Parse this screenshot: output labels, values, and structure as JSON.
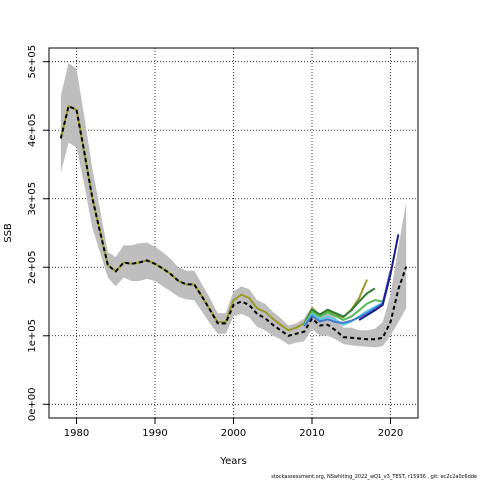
{
  "chart_data": {
    "type": "line",
    "xlabel": "Years",
    "ylabel": "SSB",
    "xlim": [
      1976.5,
      2023.5
    ],
    "ylim": [
      -20000,
      520000
    ],
    "grid": true,
    "x_ticks": [
      1980,
      1990,
      2000,
      2010,
      2020
    ],
    "x_tick_labels": [
      "1980",
      "1990",
      "2000",
      "2010",
      "2020"
    ],
    "y_ticks": [
      0,
      100000,
      200000,
      300000,
      400000,
      500000
    ],
    "y_tick_labels": [
      "0e+00",
      "1e+05",
      "2e+05",
      "3e+05",
      "4e+05",
      "5e+05"
    ],
    "colors": {
      "band": "#bebebe",
      "peel_olive": "#9a9a2a",
      "peel_darkgreen": "#2e7d32",
      "peel_green": "#56b856",
      "peel_lightblue": "#5ec8e8",
      "peel_blue": "#4478d0",
      "peel_navy": "#1c1c8c",
      "peel_last": "#000000"
    },
    "band": {
      "x": [
        1978,
        1979,
        1980,
        1981,
        1982,
        1983,
        1984,
        1985,
        1986,
        1987,
        1988,
        1989,
        1990,
        1991,
        1992,
        1993,
        1994,
        1995,
        1996,
        1997,
        1998,
        1999,
        2000,
        2001,
        2002,
        2003,
        2004,
        2005,
        2006,
        2007,
        2008,
        2009,
        2010,
        2011,
        2012,
        2013,
        2014,
        2015,
        2016,
        2017,
        2018,
        2019,
        2020,
        2021,
        2022
      ],
      "upper": [
        450000,
        498000,
        490000,
        420000,
        345000,
        285000,
        222000,
        215000,
        232000,
        232000,
        235000,
        236000,
        230000,
        222000,
        212000,
        200000,
        195000,
        195000,
        175000,
        155000,
        133000,
        133000,
        165000,
        172000,
        168000,
        152000,
        147000,
        135000,
        126000,
        115000,
        118000,
        125000,
        143000,
        132000,
        135000,
        127000,
        112000,
        112000,
        108000,
        108000,
        110000,
        120000,
        160000,
        230000,
        295000
      ],
      "lower": [
        338000,
        382000,
        375000,
        320000,
        258000,
        222000,
        185000,
        172000,
        185000,
        180000,
        180000,
        183000,
        180000,
        172000,
        165000,
        157000,
        153000,
        152000,
        135000,
        118000,
        103000,
        103000,
        128000,
        132000,
        127000,
        113000,
        108000,
        100000,
        95000,
        87000,
        90000,
        92000,
        110000,
        100000,
        100000,
        95000,
        88000,
        86000,
        85000,
        84000,
        83000,
        85000,
        100000,
        120000,
        140000
      ]
    },
    "series": [
      {
        "color_key": "peel_olive",
        "dashed": false,
        "x": [
          1978,
          1979,
          1980,
          1981,
          1982,
          1983,
          1984,
          1985,
          1986,
          1987,
          1988,
          1989,
          1990,
          1991,
          1992,
          1993,
          1994,
          1995,
          1996,
          1997,
          1998,
          1999,
          2000,
          2001,
          2002,
          2003,
          2004,
          2005,
          2006,
          2007,
          2008,
          2009,
          2010,
          2011,
          2012,
          2013,
          2014,
          2015,
          2016,
          2017
        ],
        "values": [
          388000,
          435000,
          430000,
          368000,
          302000,
          252000,
          203000,
          194000,
          207000,
          205000,
          207000,
          210000,
          205000,
          198000,
          190000,
          180000,
          175000,
          175000,
          157000,
          138000,
          120000,
          120000,
          152000,
          160000,
          155000,
          140000,
          135000,
          125000,
          116000,
          108000,
          112000,
          118000,
          140000,
          130000,
          136000,
          131000,
          127000,
          138000,
          155000,
          182000
        ]
      },
      {
        "color_key": "peel_darkgreen",
        "dashed": false,
        "x": [
          2009,
          2010,
          2011,
          2012,
          2013,
          2014,
          2015,
          2016,
          2017,
          2018
        ],
        "values": [
          117000,
          138000,
          131000,
          138000,
          133000,
          128000,
          137000,
          150000,
          162000,
          169000
        ]
      },
      {
        "color_key": "peel_green",
        "dashed": false,
        "x": [
          2009,
          2010,
          2011,
          2012,
          2013,
          2014,
          2015,
          2016,
          2017,
          2018,
          2019
        ],
        "values": [
          116000,
          135000,
          128000,
          134000,
          129000,
          123000,
          128000,
          137000,
          147000,
          152000,
          150000
        ]
      },
      {
        "color_key": "peel_lightblue",
        "dashed": false,
        "x": [
          2009,
          2010,
          2011,
          2012,
          2013,
          2014,
          2015,
          2016,
          2017,
          2018,
          2019,
          2020
        ],
        "values": [
          115000,
          132000,
          124000,
          128000,
          123000,
          116000,
          121000,
          128000,
          136000,
          142000,
          148000,
          190000
        ]
      },
      {
        "color_key": "peel_blue",
        "dashed": false,
        "x": [
          2009,
          2010,
          2011,
          2012,
          2013,
          2014,
          2015,
          2016,
          2017,
          2018,
          2019,
          2020
        ],
        "values": [
          114000,
          129000,
          121000,
          124000,
          120000,
          119000,
          122000,
          127000,
          133000,
          140000,
          147000,
          195000
        ]
      },
      {
        "color_key": "peel_navy",
        "dashed": false,
        "x": [
          2016,
          2017,
          2018,
          2019,
          2020,
          2021
        ],
        "values": [
          123000,
          130000,
          137000,
          145000,
          190000,
          248000
        ]
      },
      {
        "color_key": "peel_last",
        "dashed": true,
        "x": [
          1978,
          1979,
          1980,
          1981,
          1982,
          1983,
          1984,
          1985,
          1986,
          1987,
          1988,
          1989,
          1990,
          1991,
          1992,
          1993,
          1994,
          1995,
          1996,
          1997,
          1998,
          1999,
          2000,
          2001,
          2002,
          2003,
          2004,
          2005,
          2006,
          2007,
          2008,
          2009,
          2010,
          2011,
          2012,
          2013,
          2014,
          2015,
          2016,
          2017,
          2018,
          2019,
          2020,
          2021,
          2022
        ],
        "values": [
          388000,
          435000,
          430000,
          368000,
          302000,
          252000,
          203000,
          194000,
          207000,
          205000,
          207000,
          210000,
          205000,
          198000,
          190000,
          180000,
          175000,
          175000,
          157000,
          138000,
          118000,
          118000,
          145000,
          150000,
          145000,
          132000,
          126000,
          116000,
          108000,
          100000,
          103000,
          106000,
          125000,
          115000,
          116000,
          108000,
          98000,
          97000,
          96000,
          95000,
          95000,
          97000,
          120000,
          168000,
          201000
        ]
      }
    ]
  },
  "footer_text": "stockassessment.org, NSwhiting_2022_wQ1_v3_TEST, r15936 , git: ec2c2a0c6dde"
}
